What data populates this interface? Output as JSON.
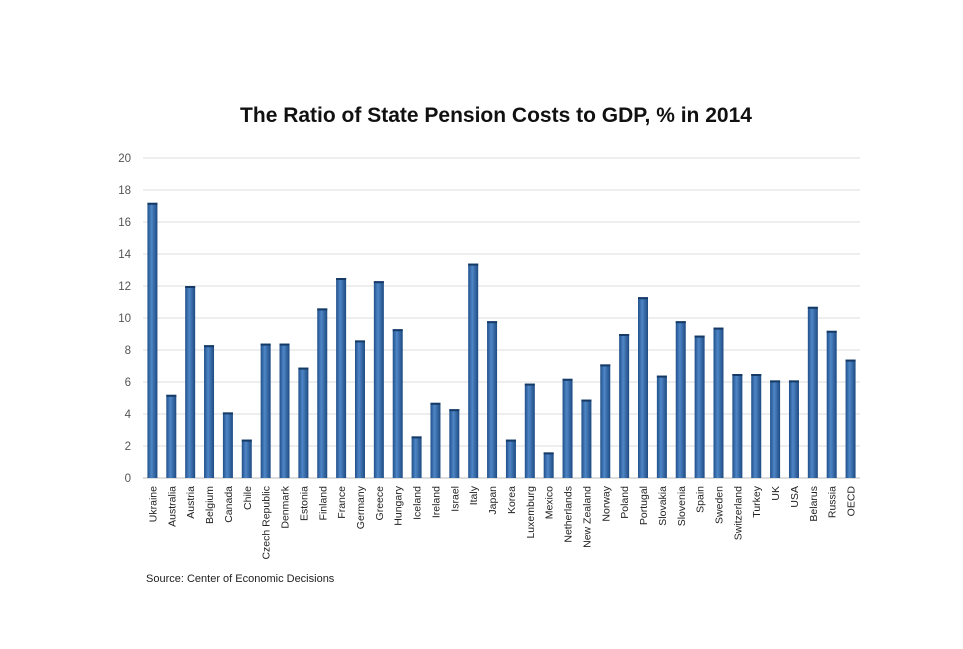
{
  "source_note": "Source: Center of Economic Decisions",
  "chart_data": {
    "type": "bar",
    "title": "The Ratio of State Pension Costs to GDP, % in 2014",
    "xlabel": "",
    "ylabel": "",
    "ylim": [
      0,
      20
    ],
    "yticks": [
      0,
      2,
      4,
      6,
      8,
      10,
      12,
      14,
      16,
      18,
      20
    ],
    "grid": true,
    "bar_color": "#3a6fb0",
    "categories": [
      "Ukraine",
      "Australia",
      "Austria",
      "Belgium",
      "Canada",
      "Chile",
      "Czech Republic",
      "Denmark",
      "Estonia",
      "Finland",
      "France",
      "Germany",
      "Greece",
      "Hungary",
      "Iceland",
      "Ireland",
      "Israel",
      "Italy",
      "Japan",
      "Korea",
      "Luxemburg",
      "Mexico",
      "Netherlands",
      "New Zealand",
      "Norway",
      "Poland",
      "Portugal",
      "Slovakia",
      "Slovenia",
      "Spain",
      "Sweden",
      "Switzerland",
      "Turkey",
      "UK",
      "USA",
      "Belarus",
      "Russia",
      "OECD"
    ],
    "values": [
      17.2,
      5.2,
      12.0,
      8.3,
      4.1,
      2.4,
      8.4,
      8.4,
      6.9,
      10.6,
      12.5,
      8.6,
      12.3,
      9.3,
      2.6,
      4.7,
      4.3,
      13.4,
      9.8,
      2.4,
      5.9,
      1.6,
      6.2,
      4.9,
      7.1,
      9.0,
      11.3,
      6.4,
      9.8,
      8.9,
      9.4,
      6.5,
      6.5,
      6.1,
      6.1,
      10.7,
      9.2,
      7.4
    ]
  }
}
